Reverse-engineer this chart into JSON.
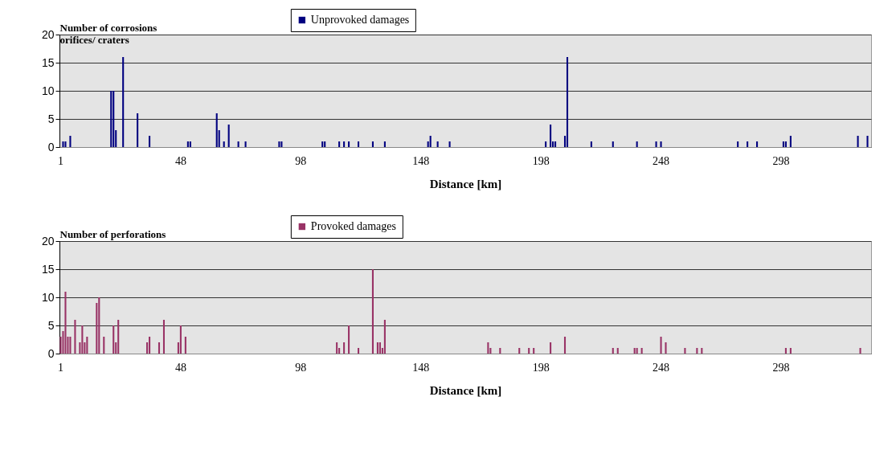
{
  "chart_data": [
    {
      "type": "bar",
      "ylabel": "Number of corrosions orifices/ craters",
      "xlabel": "Distance [km]",
      "legend": "top",
      "grid": "y",
      "ylim": [
        0,
        20
      ],
      "yticks": [
        0,
        5,
        10,
        15,
        20
      ],
      "categories": [
        "1",
        null,
        null,
        null,
        null,
        null,
        null,
        null,
        null,
        null,
        null,
        null,
        null,
        null,
        null,
        null,
        null,
        null,
        null,
        null,
        null,
        null,
        null,
        null,
        null,
        null,
        null,
        null,
        null,
        null,
        null,
        null,
        null,
        null,
        null,
        null,
        null,
        null,
        null,
        null,
        null,
        null,
        null,
        null,
        null,
        null,
        null,
        null,
        null,
        null,
        "48",
        null,
        null,
        null,
        null,
        null,
        null,
        null,
        null,
        null,
        null,
        null,
        null,
        null,
        null,
        null,
        null,
        null,
        null,
        null,
        null,
        null,
        null,
        null,
        null,
        null,
        null,
        null,
        null,
        null,
        null,
        null,
        null,
        null,
        null,
        null,
        null,
        null,
        null,
        null,
        null,
        null,
        null,
        null,
        null,
        null,
        null,
        null,
        null,
        null,
        "98",
        null,
        null,
        null,
        null,
        null,
        null,
        null,
        null,
        null,
        null,
        null,
        null,
        null,
        null,
        null,
        null,
        null,
        null,
        null,
        null,
        null,
        null,
        null,
        null,
        null,
        null,
        null,
        null,
        null,
        null,
        null,
        null,
        null,
        null,
        null,
        null,
        null,
        null,
        null,
        null,
        null,
        null,
        null,
        null,
        null,
        null,
        null,
        null,
        null,
        "148",
        null,
        null,
        null,
        null,
        null,
        null,
        null,
        null,
        null,
        null,
        null,
        null,
        null,
        null,
        null,
        null,
        null,
        null,
        null,
        null,
        null,
        null,
        null,
        null,
        null,
        null,
        null,
        null,
        null,
        null,
        null,
        null,
        null,
        null,
        null,
        null,
        null,
        null,
        null,
        null,
        null,
        null,
        null,
        null,
        null,
        null,
        null,
        null,
        null,
        "198",
        null,
        null,
        null,
        null,
        null,
        null,
        null,
        null,
        null,
        null,
        null,
        null,
        null,
        null,
        null,
        null,
        null,
        null,
        null,
        null,
        null,
        null,
        null,
        null,
        null,
        null,
        null,
        null,
        null,
        null,
        null,
        null,
        null,
        null,
        null,
        null,
        null,
        null,
        null,
        null,
        null,
        null,
        null,
        null,
        null,
        null,
        null,
        null,
        null,
        "248",
        null,
        null,
        null,
        null,
        null,
        null,
        null,
        null,
        null,
        null,
        null,
        null,
        null,
        null,
        null,
        null,
        null,
        null,
        null,
        null,
        null,
        null,
        null,
        null,
        null,
        null,
        null,
        null,
        null,
        null,
        null,
        null,
        null,
        null,
        null,
        null,
        null,
        null,
        null,
        null,
        null,
        null,
        null,
        null,
        null,
        null,
        null,
        null,
        null,
        "298",
        null,
        null,
        null,
        null,
        null,
        null,
        null,
        null,
        null,
        null,
        null,
        null,
        null,
        null,
        null,
        null,
        null,
        null,
        null,
        null,
        null,
        null,
        null,
        null,
        null,
        null,
        null,
        null,
        null,
        null,
        null,
        null,
        null,
        null,
        null,
        null,
        null
      ],
      "series": [
        {
          "name": "Unprovoked damages",
          "color": "#000080",
          "values": [
            0,
            1,
            1,
            0,
            2,
            0,
            0,
            0,
            0,
            0,
            0,
            0,
            0,
            0,
            0,
            0,
            0,
            0,
            0,
            0,
            0,
            10,
            10,
            3,
            0,
            0,
            16,
            0,
            0,
            0,
            0,
            0,
            6,
            0,
            0,
            0,
            0,
            2,
            0,
            0,
            0,
            0,
            0,
            0,
            0,
            0,
            0,
            0,
            0,
            0,
            0,
            0,
            0,
            1,
            1,
            0,
            0,
            0,
            0,
            0,
            0,
            0,
            0,
            0,
            0,
            6,
            3,
            0,
            1,
            0,
            4,
            0,
            0,
            0,
            1,
            0,
            0,
            1,
            0,
            0,
            0,
            0,
            0,
            0,
            0,
            0,
            0,
            0,
            0,
            0,
            0,
            1,
            1,
            0,
            0,
            0,
            0,
            0,
            0,
            0,
            0,
            0,
            0,
            0,
            0,
            0,
            0,
            0,
            0,
            1,
            1,
            0,
            0,
            0,
            0,
            0,
            1,
            0,
            1,
            0,
            1,
            0,
            0,
            0,
            1,
            0,
            0,
            0,
            0,
            0,
            1,
            0,
            0,
            0,
            0,
            1,
            0,
            0,
            0,
            0,
            0,
            0,
            0,
            0,
            0,
            0,
            0,
            0,
            0,
            0,
            0,
            0,
            0,
            1,
            2,
            0,
            0,
            1,
            0,
            0,
            0,
            0,
            1,
            0,
            0,
            0,
            0,
            0,
            0,
            0,
            0,
            0,
            0,
            0,
            0,
            0,
            0,
            0,
            0,
            0,
            0,
            0,
            0,
            0,
            0,
            0,
            0,
            0,
            0,
            0,
            0,
            0,
            0,
            0,
            0,
            0,
            0,
            0,
            0,
            0,
            0,
            0,
            1,
            0,
            4,
            1,
            1,
            0,
            0,
            0,
            2,
            16,
            0,
            0,
            0,
            0,
            0,
            0,
            0,
            0,
            0,
            1,
            0,
            0,
            0,
            0,
            0,
            0,
            0,
            0,
            1,
            0,
            0,
            0,
            0,
            0,
            0,
            0,
            0,
            0,
            1,
            0,
            0,
            0,
            0,
            0,
            0,
            0,
            1,
            0,
            1,
            0,
            0,
            0,
            0,
            0,
            0,
            0,
            0,
            0,
            0,
            0,
            0,
            0,
            0,
            0,
            0,
            0,
            0,
            0,
            0,
            0,
            0,
            0,
            0,
            0,
            0,
            0,
            0,
            0,
            0,
            0,
            1,
            0,
            0,
            0,
            1,
            0,
            0,
            0,
            1,
            0,
            0,
            0,
            0,
            0,
            0,
            0,
            0,
            0,
            0,
            1,
            1,
            0,
            2,
            0,
            0,
            0,
            0,
            0,
            0,
            0,
            0,
            0,
            0,
            0,
            0,
            0,
            0,
            0,
            0,
            0,
            0,
            0,
            0,
            0,
            0,
            0,
            0,
            0,
            0,
            0,
            2,
            0,
            0,
            0,
            2,
            0
          ]
        }
      ]
    },
    {
      "type": "bar",
      "ylabel": "Number of perforations",
      "xlabel": "Distance [km]",
      "legend": "top",
      "grid": "y",
      "ylim": [
        0,
        20
      ],
      "yticks": [
        0,
        5,
        10,
        15,
        20
      ],
      "categories": [
        "1",
        null,
        null,
        null,
        null,
        null,
        null,
        null,
        null,
        null,
        null,
        null,
        null,
        null,
        null,
        null,
        null,
        null,
        null,
        null,
        null,
        null,
        null,
        null,
        null,
        null,
        null,
        null,
        null,
        null,
        null,
        null,
        null,
        null,
        null,
        null,
        null,
        null,
        null,
        null,
        null,
        null,
        null,
        null,
        null,
        null,
        null,
        null,
        null,
        null,
        "48",
        null,
        null,
        null,
        null,
        null,
        null,
        null,
        null,
        null,
        null,
        null,
        null,
        null,
        null,
        null,
        null,
        null,
        null,
        null,
        null,
        null,
        null,
        null,
        null,
        null,
        null,
        null,
        null,
        null,
        null,
        null,
        null,
        null,
        null,
        null,
        null,
        null,
        null,
        null,
        null,
        null,
        null,
        null,
        null,
        null,
        null,
        null,
        null,
        null,
        "98",
        null,
        null,
        null,
        null,
        null,
        null,
        null,
        null,
        null,
        null,
        null,
        null,
        null,
        null,
        null,
        null,
        null,
        null,
        null,
        null,
        null,
        null,
        null,
        null,
        null,
        null,
        null,
        null,
        null,
        null,
        null,
        null,
        null,
        null,
        null,
        null,
        null,
        null,
        null,
        null,
        null,
        null,
        null,
        null,
        null,
        null,
        null,
        null,
        null,
        "148",
        null,
        null,
        null,
        null,
        null,
        null,
        null,
        null,
        null,
        null,
        null,
        null,
        null,
        null,
        null,
        null,
        null,
        null,
        null,
        null,
        null,
        null,
        null,
        null,
        null,
        null,
        null,
        null,
        null,
        null,
        null,
        null,
        null,
        null,
        null,
        null,
        null,
        null,
        null,
        null,
        null,
        null,
        null,
        null,
        null,
        null,
        null,
        null,
        null,
        "198",
        null,
        null,
        null,
        null,
        null,
        null,
        null,
        null,
        null,
        null,
        null,
        null,
        null,
        null,
        null,
        null,
        null,
        null,
        null,
        null,
        null,
        null,
        null,
        null,
        null,
        null,
        null,
        null,
        null,
        null,
        null,
        null,
        null,
        null,
        null,
        null,
        null,
        null,
        null,
        null,
        null,
        null,
        null,
        null,
        null,
        null,
        null,
        null,
        null,
        "248",
        null,
        null,
        null,
        null,
        null,
        null,
        null,
        null,
        null,
        null,
        null,
        null,
        null,
        null,
        null,
        null,
        null,
        null,
        null,
        null,
        null,
        null,
        null,
        null,
        null,
        null,
        null,
        null,
        null,
        null,
        null,
        null,
        null,
        null,
        null,
        null,
        null,
        null,
        null,
        null,
        null,
        null,
        null,
        null,
        null,
        null,
        null,
        null,
        null,
        "298",
        null,
        null,
        null,
        null,
        null,
        null,
        null,
        null,
        null,
        null,
        null,
        null,
        null,
        null,
        null,
        null,
        null,
        null,
        null,
        null,
        null,
        null,
        null,
        null,
        null,
        null,
        null,
        null,
        null,
        null,
        null,
        null,
        null,
        null,
        null,
        null,
        null
      ],
      "series": [
        {
          "name": "Provoked damages",
          "color": "#993366",
          "values": [
            3,
            4,
            11,
            3,
            3,
            0,
            6,
            0,
            2,
            5,
            2,
            3,
            0,
            0,
            0,
            9,
            10,
            0,
            3,
            0,
            0,
            0,
            5,
            2,
            6,
            0,
            0,
            0,
            0,
            0,
            0,
            0,
            0,
            0,
            0,
            0,
            2,
            3,
            0,
            0,
            0,
            2,
            0,
            6,
            0,
            0,
            0,
            0,
            0,
            2,
            5,
            0,
            3,
            0,
            0,
            0,
            0,
            0,
            0,
            0,
            0,
            0,
            0,
            0,
            0,
            0,
            0,
            0,
            0,
            0,
            0,
            0,
            0,
            0,
            0,
            0,
            0,
            0,
            0,
            0,
            0,
            0,
            0,
            0,
            0,
            0,
            0,
            0,
            0,
            0,
            0,
            0,
            0,
            0,
            0,
            0,
            0,
            0,
            0,
            0,
            0,
            0,
            0,
            0,
            0,
            0,
            0,
            0,
            0,
            0,
            0,
            0,
            0,
            0,
            0,
            2,
            1,
            0,
            2,
            0,
            5,
            0,
            0,
            0,
            1,
            0,
            0,
            0,
            0,
            0,
            15,
            0,
            2,
            2,
            1,
            6,
            0,
            0,
            0,
            0,
            0,
            0,
            0,
            0,
            0,
            0,
            0,
            0,
            0,
            0,
            0,
            0,
            0,
            0,
            0,
            0,
            0,
            0,
            0,
            0,
            0,
            0,
            0,
            0,
            0,
            0,
            0,
            0,
            0,
            0,
            0,
            0,
            0,
            0,
            0,
            0,
            0,
            0,
            2,
            1,
            0,
            0,
            0,
            1,
            0,
            0,
            0,
            0,
            0,
            0,
            0,
            1,
            0,
            0,
            0,
            1,
            0,
            1,
            0,
            0,
            0,
            0,
            0,
            0,
            2,
            0,
            0,
            0,
            0,
            0,
            3,
            0,
            0,
            0,
            0,
            0,
            0,
            0,
            0,
            0,
            0,
            0,
            0,
            0,
            0,
            0,
            0,
            0,
            0,
            0,
            1,
            0,
            1,
            0,
            0,
            0,
            0,
            0,
            0,
            1,
            1,
            0,
            1,
            0,
            0,
            0,
            0,
            0,
            0,
            0,
            3,
            0,
            2,
            0,
            0,
            0,
            0,
            0,
            0,
            0,
            1,
            0,
            0,
            0,
            0,
            1,
            0,
            1,
            0,
            0,
            0,
            0,
            0,
            0,
            0,
            0,
            0,
            0,
            0,
            0,
            0,
            0,
            0,
            0,
            0,
            0,
            0,
            0,
            0,
            0,
            0,
            0,
            0,
            0,
            0,
            0,
            0,
            0,
            0,
            0,
            0,
            0,
            1,
            0,
            1,
            0,
            0,
            0,
            0,
            0,
            0,
            0,
            0,
            0,
            0,
            0,
            0,
            0,
            0,
            0,
            0,
            0,
            0,
            0,
            0,
            0,
            0,
            0,
            0,
            0,
            0,
            0,
            0,
            1,
            0,
            0,
            0,
            0
          ]
        }
      ]
    }
  ]
}
